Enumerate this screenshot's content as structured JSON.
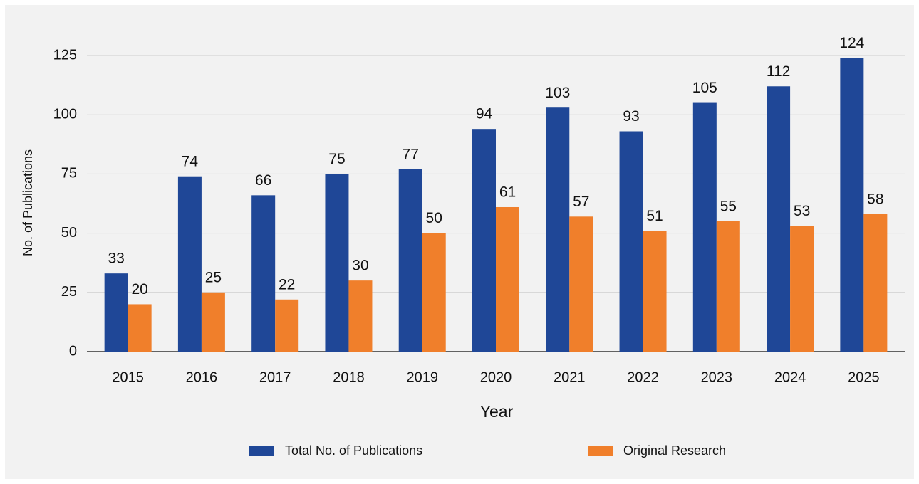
{
  "chart_data": {
    "type": "bar",
    "x_label": "Year",
    "y_label": "No. of Publications",
    "categories": [
      "2015",
      "2016",
      "2017",
      "2018",
      "2019",
      "2020",
      "2021",
      "2022",
      "2023",
      "2024",
      "2025"
    ],
    "series": [
      {
        "name": "Total No. of Publications",
        "color": "#1f4797",
        "values": [
          33,
          74,
          66,
          75,
          77,
          94,
          103,
          93,
          105,
          112,
          124
        ]
      },
      {
        "name": "Original Research",
        "color": "#f07f2b",
        "values": [
          20,
          25,
          22,
          30,
          50,
          61,
          57,
          51,
          55,
          53,
          58
        ]
      }
    ],
    "ylim": [
      0,
      125
    ],
    "yticks": [
      0,
      25,
      50,
      75,
      100,
      125
    ],
    "grid": true
  }
}
